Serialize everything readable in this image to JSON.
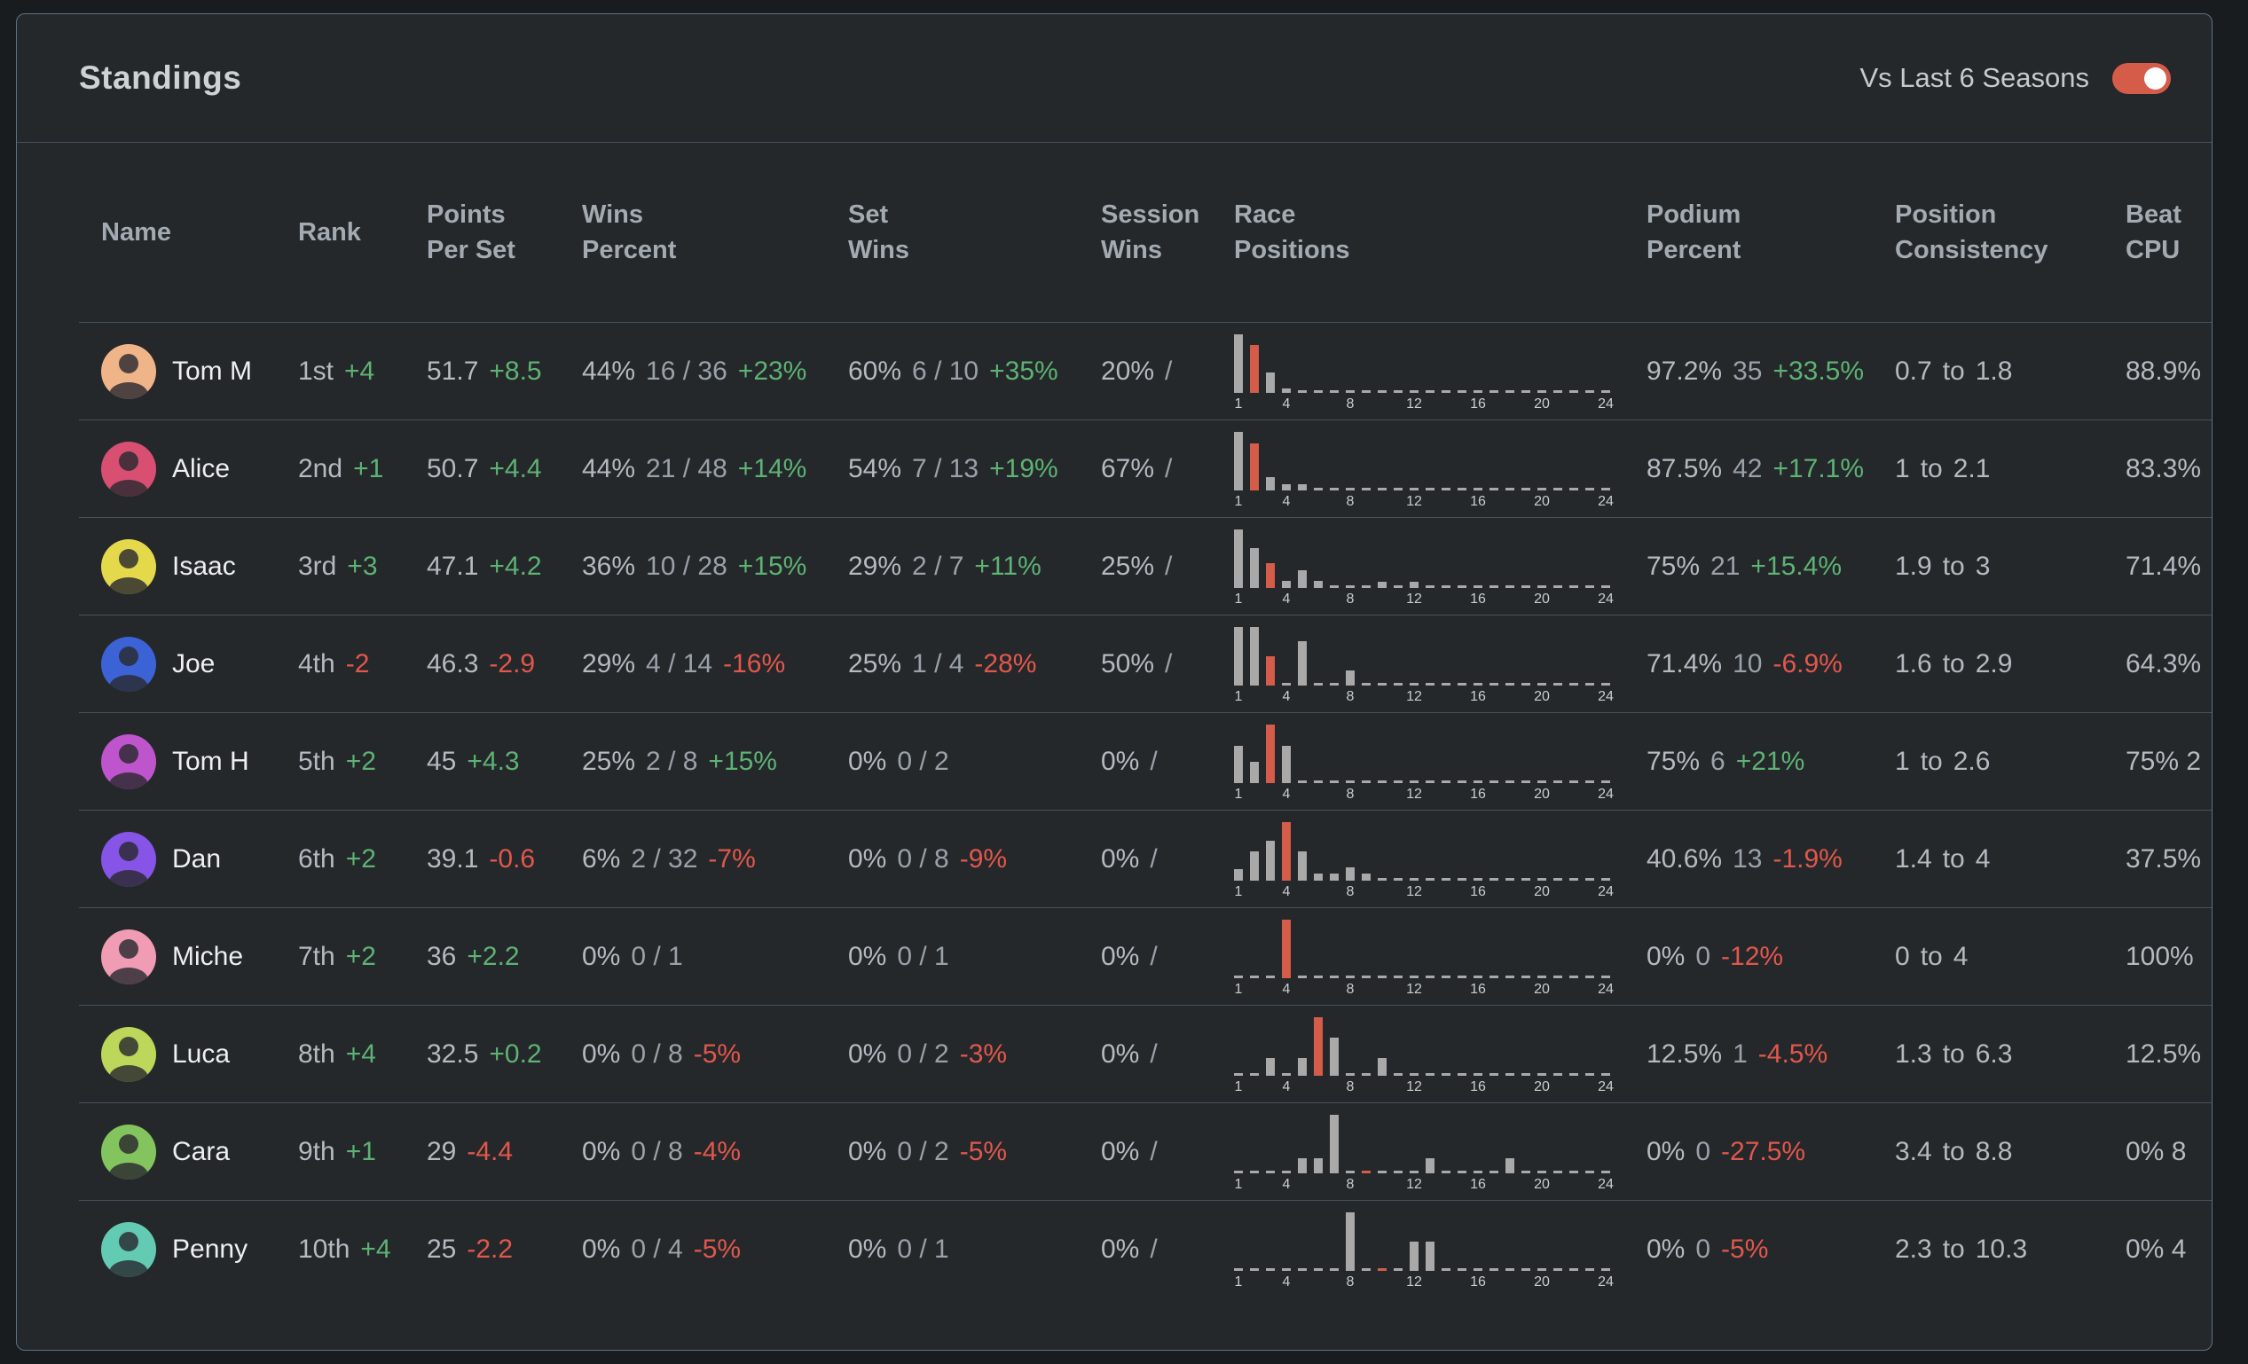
{
  "colors": {
    "accent_red": "#d55c49",
    "positive": "#5eb273",
    "negative": "#e2574b"
  },
  "header": {
    "title": "Standings",
    "toggle_label": "Vs Last 6 Seasons",
    "toggle_on": true
  },
  "table": {
    "columns": [
      [
        "Name"
      ],
      [
        "Rank"
      ],
      [
        "Points",
        "Per Set"
      ],
      [
        "Wins",
        "Percent"
      ],
      [
        "Set",
        "Wins"
      ],
      [
        "Session",
        "Wins"
      ],
      [
        "Race",
        "Positions"
      ],
      [
        "Podium",
        "Percent"
      ],
      [
        "Position",
        "Consistency"
      ],
      [
        "Beat",
        "CPU"
      ]
    ]
  },
  "chart_axis": [
    1,
    4,
    8,
    12,
    16,
    20,
    24
  ],
  "chart_data": {
    "type": "bar",
    "note": "per-row race position distributions, x = finishing position 1-24, values are relative bar heights 0-100, highlight = red bar position",
    "x_ticks": [
      1,
      4,
      8,
      12,
      16,
      20,
      24
    ]
  },
  "rows": [
    {
      "name": "Tom M",
      "avatar_color": "#f0b489",
      "rank": {
        "value": "1st",
        "delta": "+4"
      },
      "points_per_set": {
        "value": "51.7",
        "delta": "+8.5"
      },
      "wins_percent": {
        "value": "44%",
        "fraction": "16 / 36",
        "delta": "+23%"
      },
      "set_wins": {
        "value": "60%",
        "fraction": "6 / 10",
        "delta": "+35%"
      },
      "session_wins": {
        "value": "20%",
        "fraction": "/"
      },
      "race_positions": {
        "values": [
          100,
          82,
          35,
          8,
          0,
          0,
          0,
          0,
          0,
          0,
          0,
          0,
          0,
          0,
          0,
          0,
          0,
          0,
          0,
          0,
          0,
          0,
          0,
          0
        ],
        "highlight": 2
      },
      "podium_percent": {
        "value": "97.2%",
        "count": "35",
        "delta": "+33.5%"
      },
      "position_consistency": {
        "from": "0.7",
        "to": "1.8"
      },
      "beat_cpu": "88.9%"
    },
    {
      "name": "Alice",
      "avatar_color": "#d94f72",
      "rank": {
        "value": "2nd",
        "delta": "+1"
      },
      "points_per_set": {
        "value": "50.7",
        "delta": "+4.4"
      },
      "wins_percent": {
        "value": "44%",
        "fraction": "21 / 48",
        "delta": "+14%"
      },
      "set_wins": {
        "value": "54%",
        "fraction": "7 / 13",
        "delta": "+19%"
      },
      "session_wins": {
        "value": "67%",
        "fraction": "/"
      },
      "race_positions": {
        "values": [
          100,
          80,
          22,
          10,
          10,
          0,
          0,
          0,
          0,
          0,
          0,
          0,
          0,
          0,
          0,
          0,
          0,
          0,
          0,
          0,
          0,
          0,
          0,
          0
        ],
        "highlight": 2
      },
      "podium_percent": {
        "value": "87.5%",
        "count": "42",
        "delta": "+17.1%"
      },
      "position_consistency": {
        "from": "1",
        "to": "2.1"
      },
      "beat_cpu": "83.3%"
    },
    {
      "name": "Isaac",
      "avatar_color": "#e3d94b",
      "rank": {
        "value": "3rd",
        "delta": "+3"
      },
      "points_per_set": {
        "value": "47.1",
        "delta": "+4.2"
      },
      "wins_percent": {
        "value": "36%",
        "fraction": "10 / 28",
        "delta": "+15%"
      },
      "set_wins": {
        "value": "29%",
        "fraction": "2 / 7",
        "delta": "+11%"
      },
      "session_wins": {
        "value": "25%",
        "fraction": "/"
      },
      "race_positions": {
        "values": [
          100,
          68,
          42,
          12,
          30,
          12,
          0,
          0,
          0,
          10,
          0,
          10,
          0,
          0,
          0,
          0,
          0,
          0,
          0,
          0,
          0,
          0,
          0,
          0
        ],
        "highlight": 3
      },
      "podium_percent": {
        "value": "75%",
        "count": "21",
        "delta": "+15.4%"
      },
      "position_consistency": {
        "from": "1.9",
        "to": "3"
      },
      "beat_cpu": "71.4%"
    },
    {
      "name": "Joe",
      "avatar_color": "#3c63d6",
      "rank": {
        "value": "4th",
        "delta": "-2"
      },
      "points_per_set": {
        "value": "46.3",
        "delta": "-2.9"
      },
      "wins_percent": {
        "value": "29%",
        "fraction": "4 / 14",
        "delta": "-16%"
      },
      "set_wins": {
        "value": "25%",
        "fraction": "1 / 4",
        "delta": "-28%"
      },
      "session_wins": {
        "value": "50%",
        "fraction": "/"
      },
      "race_positions": {
        "values": [
          100,
          100,
          50,
          0,
          75,
          0,
          0,
          25,
          0,
          0,
          0,
          0,
          0,
          0,
          0,
          0,
          0,
          0,
          0,
          0,
          0,
          0,
          0,
          0
        ],
        "highlight": 3
      },
      "podium_percent": {
        "value": "71.4%",
        "count": "10",
        "delta": "-6.9%"
      },
      "position_consistency": {
        "from": "1.6",
        "to": "2.9"
      },
      "beat_cpu": "64.3%"
    },
    {
      "name": "Tom H",
      "avatar_color": "#bf55cc",
      "rank": {
        "value": "5th",
        "delta": "+2"
      },
      "points_per_set": {
        "value": "45",
        "delta": "+4.3"
      },
      "wins_percent": {
        "value": "25%",
        "fraction": "2 / 8",
        "delta": "+15%"
      },
      "set_wins": {
        "value": "0%",
        "fraction": "0 / 2",
        "delta": ""
      },
      "session_wins": {
        "value": "0%",
        "fraction": "/"
      },
      "race_positions": {
        "values": [
          63,
          37,
          100,
          63,
          0,
          0,
          0,
          0,
          0,
          0,
          0,
          0,
          0,
          0,
          0,
          0,
          0,
          0,
          0,
          0,
          0,
          0,
          0,
          0
        ],
        "highlight": 3
      },
      "podium_percent": {
        "value": "75%",
        "count": "6",
        "delta": "+21%"
      },
      "position_consistency": {
        "from": "1",
        "to": "2.6"
      },
      "beat_cpu": "75% 2"
    },
    {
      "name": "Dan",
      "avatar_color": "#8655e8",
      "rank": {
        "value": "6th",
        "delta": "+2"
      },
      "points_per_set": {
        "value": "39.1",
        "delta": "-0.6"
      },
      "wins_percent": {
        "value": "6%",
        "fraction": "2 / 32",
        "delta": "-7%"
      },
      "set_wins": {
        "value": "0%",
        "fraction": "0 / 8",
        "delta": "-9%"
      },
      "session_wins": {
        "value": "0%",
        "fraction": "/"
      },
      "race_positions": {
        "values": [
          20,
          50,
          68,
          100,
          50,
          12,
          12,
          22,
          12,
          0,
          0,
          0,
          0,
          0,
          0,
          0,
          0,
          0,
          0,
          0,
          0,
          0,
          0,
          0
        ],
        "highlight": 4
      },
      "podium_percent": {
        "value": "40.6%",
        "count": "13",
        "delta": "-1.9%"
      },
      "position_consistency": {
        "from": "1.4",
        "to": "4"
      },
      "beat_cpu": "37.5%"
    },
    {
      "name": "Miche",
      "avatar_color": "#ef9cb4",
      "rank": {
        "value": "7th",
        "delta": "+2"
      },
      "points_per_set": {
        "value": "36",
        "delta": "+2.2"
      },
      "wins_percent": {
        "value": "0%",
        "fraction": "0 / 1",
        "delta": ""
      },
      "set_wins": {
        "value": "0%",
        "fraction": "0 / 1",
        "delta": ""
      },
      "session_wins": {
        "value": "0%",
        "fraction": "/"
      },
      "race_positions": {
        "values": [
          0,
          0,
          0,
          100,
          0,
          0,
          0,
          0,
          0,
          0,
          0,
          0,
          0,
          0,
          0,
          0,
          0,
          0,
          0,
          0,
          0,
          0,
          0,
          0
        ],
        "highlight": 4
      },
      "podium_percent": {
        "value": "0%",
        "count": "0",
        "delta": "-12%"
      },
      "position_consistency": {
        "from": "0",
        "to": "4"
      },
      "beat_cpu": "100%"
    },
    {
      "name": "Luca",
      "avatar_color": "#bcd75a",
      "rank": {
        "value": "8th",
        "delta": "+4"
      },
      "points_per_set": {
        "value": "32.5",
        "delta": "+0.2"
      },
      "wins_percent": {
        "value": "0%",
        "fraction": "0 / 8",
        "delta": "-5%"
      },
      "set_wins": {
        "value": "0%",
        "fraction": "0 / 2",
        "delta": "-3%"
      },
      "session_wins": {
        "value": "0%",
        "fraction": "/"
      },
      "race_positions": {
        "values": [
          0,
          0,
          30,
          0,
          30,
          100,
          65,
          0,
          0,
          30,
          0,
          0,
          0,
          0,
          0,
          0,
          0,
          0,
          0,
          0,
          0,
          0,
          0,
          0
        ],
        "highlight": 6
      },
      "podium_percent": {
        "value": "12.5%",
        "count": "1",
        "delta": "-4.5%"
      },
      "position_consistency": {
        "from": "1.3",
        "to": "6.3"
      },
      "beat_cpu": "12.5%"
    },
    {
      "name": "Cara",
      "avatar_color": "#84c45e",
      "rank": {
        "value": "9th",
        "delta": "+1"
      },
      "points_per_set": {
        "value": "29",
        "delta": "-4.4"
      },
      "wins_percent": {
        "value": "0%",
        "fraction": "0 / 8",
        "delta": "-4%"
      },
      "set_wins": {
        "value": "0%",
        "fraction": "0 / 2",
        "delta": "-5%"
      },
      "session_wins": {
        "value": "0%",
        "fraction": "/"
      },
      "race_positions": {
        "values": [
          0,
          0,
          0,
          0,
          25,
          25,
          100,
          0,
          0,
          0,
          0,
          0,
          25,
          0,
          0,
          0,
          0,
          25,
          0,
          0,
          0,
          0,
          0,
          0
        ],
        "highlight": 9
      },
      "podium_percent": {
        "value": "0%",
        "count": "0",
        "delta": "-27.5%"
      },
      "position_consistency": {
        "from": "3.4",
        "to": "8.8"
      },
      "beat_cpu": "0% 8"
    },
    {
      "name": "Penny",
      "avatar_color": "#63cbb4",
      "rank": {
        "value": "10th",
        "delta": "+4"
      },
      "points_per_set": {
        "value": "25",
        "delta": "-2.2"
      },
      "wins_percent": {
        "value": "0%",
        "fraction": "0 / 4",
        "delta": "-5%"
      },
      "set_wins": {
        "value": "0%",
        "fraction": "0 / 1",
        "delta": ""
      },
      "session_wins": {
        "value": "0%",
        "fraction": "/"
      },
      "race_positions": {
        "values": [
          0,
          0,
          0,
          0,
          0,
          0,
          0,
          100,
          0,
          0,
          0,
          50,
          50,
          0,
          0,
          0,
          0,
          0,
          0,
          0,
          0,
          0,
          0,
          0
        ],
        "highlight": 10
      },
      "podium_percent": {
        "value": "0%",
        "count": "0",
        "delta": "-5%"
      },
      "position_consistency": {
        "from": "2.3",
        "to": "10.3"
      },
      "beat_cpu": "0% 4"
    }
  ]
}
